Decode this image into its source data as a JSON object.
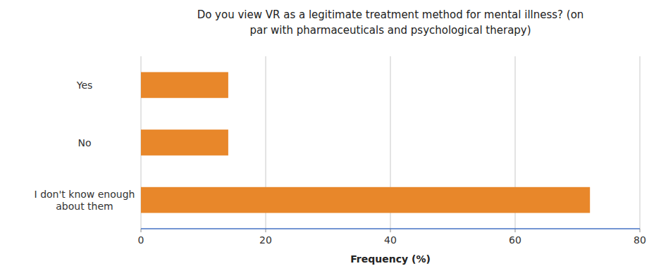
{
  "chart_data": {
    "type": "bar",
    "orientation": "horizontal",
    "title": "Do you view VR as a legitimate  treatment method for mental illness?  (on\npar with  pharmaceuticals and psychological therapy)",
    "categories": [
      "I don't know enough\nabout them",
      "No",
      "Yes"
    ],
    "values": [
      72,
      14,
      14
    ],
    "color": "#E8872A",
    "xlim": [
      0,
      80
    ],
    "xticks": [
      0,
      20,
      40,
      60,
      80
    ],
    "xlabel": "Frequency (%)",
    "grid": true
  }
}
